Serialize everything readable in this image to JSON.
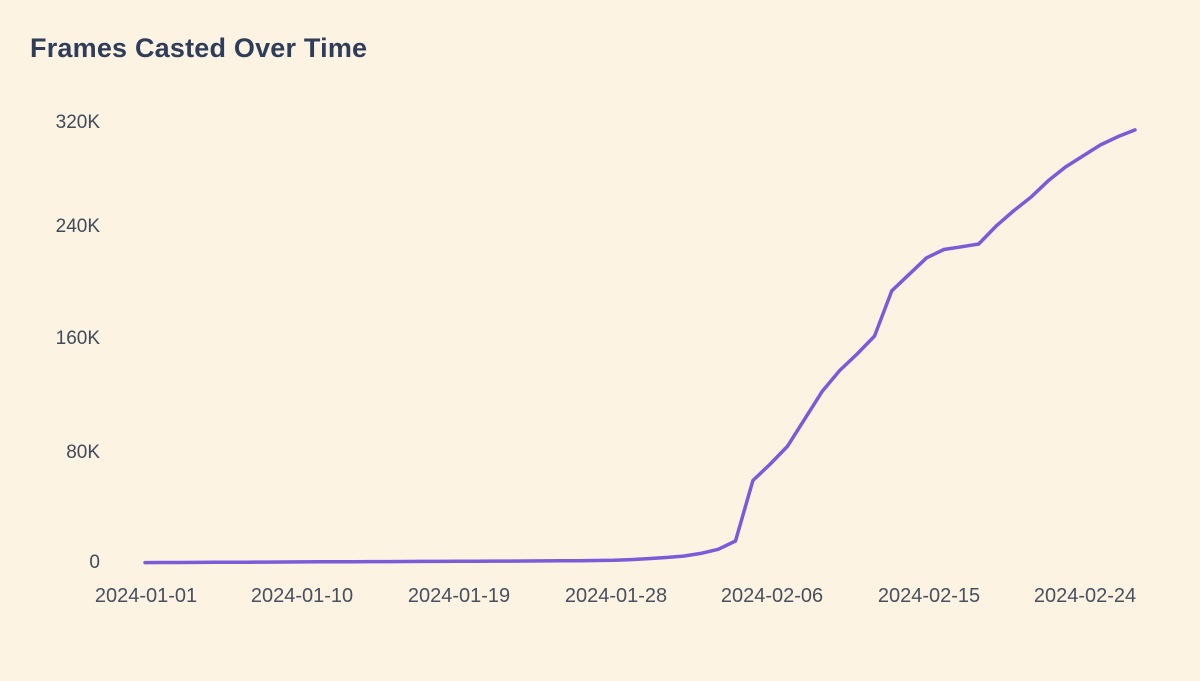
{
  "page": {
    "background": "#fdf3e2",
    "title_color": "#2e3d59",
    "tick_color": "#3f4a5a"
  },
  "chart_data": {
    "type": "line",
    "title": "Frames Casted Over Time",
    "xlabel": "",
    "ylabel": "",
    "grid": false,
    "legend": false,
    "line_color": "#7b5bd8",
    "ylim": [
      0,
      320000
    ],
    "ytick_labels": [
      "320K",
      "240K",
      "160K",
      "80K",
      "0"
    ],
    "xtick_labels": [
      "2024-01-01",
      "2024-01-10",
      "2024-01-19",
      "2024-01-28",
      "2024-02-06",
      "2024-02-15",
      "2024-02-24"
    ],
    "x": [
      "2024-01-01",
      "2024-01-02",
      "2024-01-03",
      "2024-01-04",
      "2024-01-05",
      "2024-01-06",
      "2024-01-07",
      "2024-01-08",
      "2024-01-09",
      "2024-01-10",
      "2024-01-11",
      "2024-01-12",
      "2024-01-13",
      "2024-01-14",
      "2024-01-15",
      "2024-01-16",
      "2024-01-17",
      "2024-01-18",
      "2024-01-19",
      "2024-01-20",
      "2024-01-21",
      "2024-01-22",
      "2024-01-23",
      "2024-01-24",
      "2024-01-25",
      "2024-01-26",
      "2024-01-27",
      "2024-01-28",
      "2024-01-29",
      "2024-01-30",
      "2024-01-31",
      "2024-02-01",
      "2024-02-02",
      "2024-02-03",
      "2024-02-04",
      "2024-02-05",
      "2024-02-06",
      "2024-02-07",
      "2024-02-08",
      "2024-02-09",
      "2024-02-10",
      "2024-02-11",
      "2024-02-12",
      "2024-02-13",
      "2024-02-14",
      "2024-02-15",
      "2024-02-16",
      "2024-02-17",
      "2024-02-18",
      "2024-02-19",
      "2024-02-20",
      "2024-02-21",
      "2024-02-22",
      "2024-02-23",
      "2024-02-24",
      "2024-02-25",
      "2024-02-26",
      "2024-02-27"
    ],
    "values": [
      300,
      350,
      400,
      450,
      500,
      550,
      600,
      650,
      700,
      800,
      850,
      900,
      950,
      1000,
      1050,
      1100,
      1150,
      1200,
      1250,
      1300,
      1350,
      1400,
      1450,
      1500,
      1600,
      1700,
      1850,
      2000,
      2500,
      3200,
      4000,
      5000,
      7000,
      10000,
      16000,
      60000,
      72000,
      85000,
      105000,
      125000,
      140000,
      152000,
      165000,
      198000,
      210000,
      222000,
      228000,
      230000,
      232000,
      245000,
      256000,
      266000,
      278000,
      288000,
      296000,
      304000,
      310000,
      315000
    ]
  }
}
